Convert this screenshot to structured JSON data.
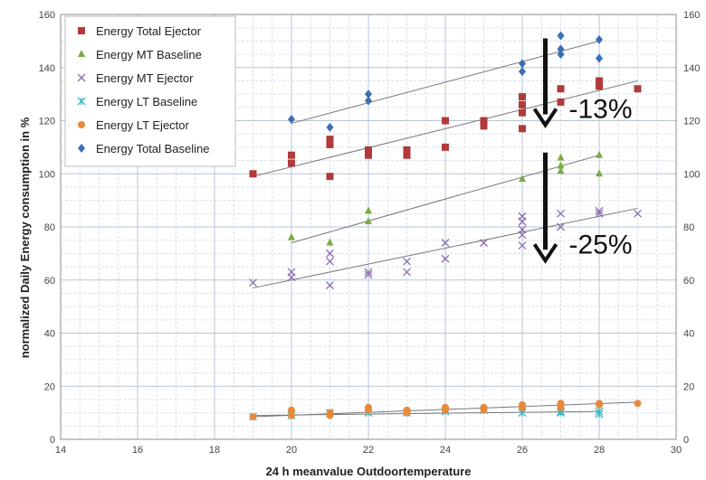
{
  "chart_data": {
    "type": "scatter",
    "xlabel": "24 h meanvalue Outdoortemperature",
    "ylabel": "normalized Daily Energy consumption in %",
    "xlim": [
      14,
      30
    ],
    "ylim": [
      0,
      160
    ],
    "x_ticks": [
      14,
      16,
      18,
      20,
      22,
      24,
      26,
      28,
      30
    ],
    "y_ticks": [
      0,
      20,
      40,
      60,
      80,
      100,
      120,
      140,
      160
    ],
    "grid": true,
    "legend_position": "top-left",
    "series": [
      {
        "name": "Energy Total Ejector",
        "marker": "square",
        "color": "#b23a3a",
        "points": [
          [
            19,
            100
          ],
          [
            20,
            107
          ],
          [
            20,
            104
          ],
          [
            21,
            113
          ],
          [
            21,
            111
          ],
          [
            21,
            99
          ],
          [
            22,
            109
          ],
          [
            22,
            107
          ],
          [
            23,
            109
          ],
          [
            23,
            107
          ],
          [
            24,
            120
          ],
          [
            24,
            110
          ],
          [
            25,
            120
          ],
          [
            25,
            118
          ],
          [
            26,
            129
          ],
          [
            26,
            126
          ],
          [
            26,
            123
          ],
          [
            26,
            117
          ],
          [
            27,
            132
          ],
          [
            27,
            127
          ],
          [
            28,
            135
          ],
          [
            28,
            133
          ],
          [
            29,
            132
          ]
        ],
        "trend": [
          [
            19,
            99
          ],
          [
            29,
            135
          ]
        ]
      },
      {
        "name": "Energy MT Baseline",
        "marker": "triangle",
        "color": "#7aab46",
        "points": [
          [
            20,
            76
          ],
          [
            21,
            74
          ],
          [
            22,
            86
          ],
          [
            22,
            82
          ],
          [
            26,
            98
          ],
          [
            27,
            106
          ],
          [
            27,
            103
          ],
          [
            27,
            101
          ],
          [
            28,
            107
          ],
          [
            28,
            100
          ]
        ],
        "trend": [
          [
            20,
            74
          ],
          [
            28,
            107
          ]
        ]
      },
      {
        "name": "Energy MT Ejector",
        "marker": "x",
        "color": "#8a6fb0",
        "points": [
          [
            19,
            59
          ],
          [
            20,
            63
          ],
          [
            20,
            61
          ],
          [
            21,
            70
          ],
          [
            21,
            67
          ],
          [
            21,
            58
          ],
          [
            22,
            63
          ],
          [
            22,
            62
          ],
          [
            23,
            67
          ],
          [
            23,
            63
          ],
          [
            24,
            74
          ],
          [
            24,
            68
          ],
          [
            25,
            74
          ],
          [
            26,
            84
          ],
          [
            26,
            82
          ],
          [
            26,
            79
          ],
          [
            26,
            77
          ],
          [
            26,
            73
          ],
          [
            27,
            85
          ],
          [
            27,
            80
          ],
          [
            28,
            86
          ],
          [
            28,
            85
          ],
          [
            29,
            85
          ]
        ],
        "trend": [
          [
            19,
            57
          ],
          [
            29,
            87
          ]
        ]
      },
      {
        "name": "Energy LT Baseline",
        "marker": "asterisk",
        "color": "#3ab7c7",
        "points": [
          [
            19,
            8.5
          ],
          [
            20,
            9
          ],
          [
            21,
            10
          ],
          [
            22,
            10
          ],
          [
            23,
            10
          ],
          [
            24,
            10.5
          ],
          [
            25,
            11
          ],
          [
            26,
            10
          ],
          [
            27,
            10.5
          ],
          [
            27,
            10
          ],
          [
            28,
            10.5
          ],
          [
            28,
            9.5
          ]
        ],
        "trend": [
          [
            19,
            9
          ],
          [
            28,
            10.5
          ]
        ]
      },
      {
        "name": "Energy LT Ejector",
        "marker": "circle",
        "color": "#e8893a",
        "points": [
          [
            19,
            8.5
          ],
          [
            20,
            11
          ],
          [
            20,
            9
          ],
          [
            21,
            10
          ],
          [
            21,
            9
          ],
          [
            22,
            12
          ],
          [
            22,
            11
          ],
          [
            23,
            11
          ],
          [
            23,
            10
          ],
          [
            24,
            12
          ],
          [
            24,
            11
          ],
          [
            25,
            12
          ],
          [
            25,
            11
          ],
          [
            26,
            13
          ],
          [
            26,
            12
          ],
          [
            27,
            13.5
          ],
          [
            27,
            12
          ],
          [
            28,
            13.5
          ],
          [
            28,
            13
          ],
          [
            29,
            13.5
          ]
        ],
        "trend": [
          [
            19,
            8.5
          ],
          [
            29,
            14
          ]
        ]
      },
      {
        "name": "Energy Total Baseline",
        "marker": "diamond",
        "color": "#3a6fb6",
        "points": [
          [
            20,
            120.5
          ],
          [
            21,
            117.5
          ],
          [
            22,
            130
          ],
          [
            22,
            127.5
          ],
          [
            26,
            141.5
          ],
          [
            26,
            138.5
          ],
          [
            27,
            152
          ],
          [
            27,
            147
          ],
          [
            27,
            145
          ],
          [
            28,
            150.5
          ],
          [
            28,
            143.5
          ]
        ],
        "trend": [
          [
            20,
            119
          ],
          [
            28,
            150
          ]
        ]
      }
    ],
    "annotations": [
      {
        "text": "-13%",
        "arrow_x": 26.6,
        "arrow_from": 151,
        "arrow_to": 119
      },
      {
        "text": "-25%",
        "arrow_x": 26.6,
        "arrow_from": 108,
        "arrow_to": 68
      }
    ]
  }
}
